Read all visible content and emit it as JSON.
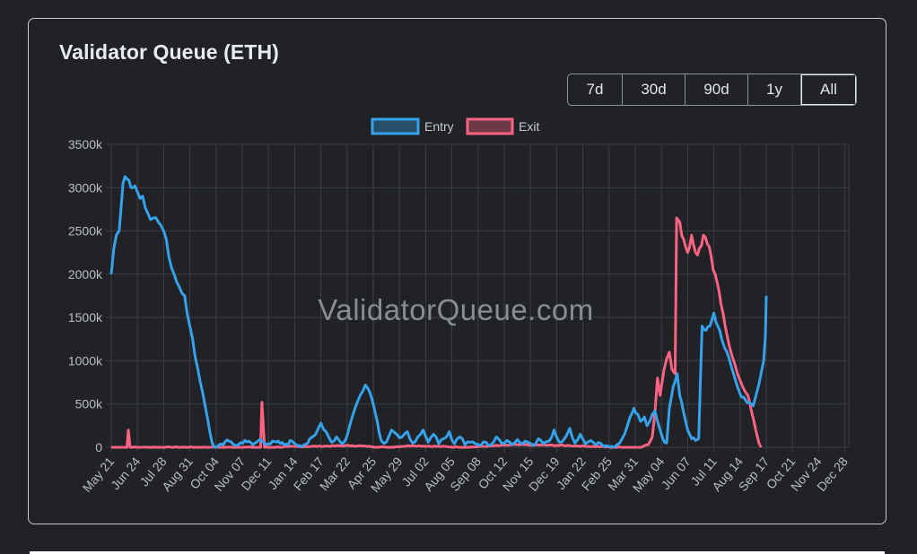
{
  "chart_data": {
    "type": "line",
    "title": "Validator Queue (ETH)",
    "watermark": "ValidatorQueue.com",
    "range_buttons": [
      "7d",
      "30d",
      "90d",
      "1y",
      "All"
    ],
    "active_range": "All",
    "ylim": [
      0,
      3500000
    ],
    "y_ticks": [
      0,
      500000,
      1000000,
      1500000,
      2000000,
      2500000,
      3000000,
      3500000
    ],
    "y_tick_labels": [
      "0",
      "500k",
      "1000k",
      "1500k",
      "2000k",
      "2500k",
      "3000k",
      "3500k"
    ],
    "x_tick_labels": [
      "May 21",
      "Jun 24",
      "Jul 28",
      "Aug 31",
      "Oct 04",
      "Nov 07",
      "Dec 11",
      "Jan 14",
      "Feb 17",
      "Mar 22",
      "Apr 25",
      "May 29",
      "Jul 02",
      "Aug 05",
      "Sep 08",
      "Oct 12",
      "Nov 15",
      "Dec 19",
      "Jan 22",
      "Feb 25",
      "Mar 31",
      "May 04",
      "Jun 07",
      "Jul 11",
      "Aug 14",
      "Sep 17",
      "Oct 21",
      "Nov 24",
      "Dec 28"
    ],
    "x_range_index": [
      0,
      28.25
    ],
    "legend": {
      "position": "top"
    },
    "series": [
      {
        "name": "Entry",
        "color": "#36a2eb",
        "points": [
          [
            0,
            2000000
          ],
          [
            0.1,
            2300000
          ],
          [
            0.3,
            2500000
          ],
          [
            0.45,
            3050000
          ],
          [
            0.6,
            3100000
          ],
          [
            0.75,
            3000000
          ],
          [
            0.9,
            3020000
          ],
          [
            1.0,
            2950000
          ],
          [
            1.2,
            2900000
          ],
          [
            1.4,
            2700000
          ],
          [
            1.6,
            2650000
          ],
          [
            1.8,
            2600000
          ],
          [
            2.0,
            2500000
          ],
          [
            2.2,
            2200000
          ],
          [
            2.4,
            2000000
          ],
          [
            2.6,
            1850000
          ],
          [
            2.8,
            1750000
          ],
          [
            3.0,
            1400000
          ],
          [
            3.2,
            1050000
          ],
          [
            3.4,
            750000
          ],
          [
            3.6,
            450000
          ],
          [
            3.75,
            200000
          ],
          [
            3.85,
            50000
          ],
          [
            3.95,
            0
          ],
          [
            4.2,
            40000
          ],
          [
            4.5,
            70000
          ],
          [
            4.8,
            20000
          ],
          [
            5.1,
            80000
          ],
          [
            5.4,
            30000
          ],
          [
            5.7,
            90000
          ],
          [
            6.0,
            40000
          ],
          [
            6.3,
            60000
          ],
          [
            6.6,
            30000
          ],
          [
            6.9,
            70000
          ],
          [
            7.2,
            20000
          ],
          [
            7.5,
            50000
          ],
          [
            7.8,
            150000
          ],
          [
            8.0,
            280000
          ],
          [
            8.2,
            180000
          ],
          [
            8.4,
            60000
          ],
          [
            8.6,
            120000
          ],
          [
            8.8,
            40000
          ],
          [
            8.95,
            90000
          ],
          [
            9.1,
            250000
          ],
          [
            9.3,
            450000
          ],
          [
            9.5,
            600000
          ],
          [
            9.7,
            720000
          ],
          [
            9.85,
            650000
          ],
          [
            10.0,
            500000
          ],
          [
            10.15,
            300000
          ],
          [
            10.3,
            80000
          ],
          [
            10.5,
            60000
          ],
          [
            10.7,
            200000
          ],
          [
            10.9,
            150000
          ],
          [
            11.1,
            120000
          ],
          [
            11.3,
            180000
          ],
          [
            11.5,
            50000
          ],
          [
            11.7,
            120000
          ],
          [
            11.9,
            200000
          ],
          [
            12.1,
            60000
          ],
          [
            12.3,
            150000
          ],
          [
            12.5,
            40000
          ],
          [
            12.7,
            100000
          ],
          [
            12.9,
            180000
          ],
          [
            13.1,
            40000
          ],
          [
            13.3,
            120000
          ],
          [
            13.5,
            30000
          ],
          [
            13.7,
            60000
          ],
          [
            13.9,
            40000
          ],
          [
            14.1,
            20000
          ],
          [
            14.3,
            60000
          ],
          [
            14.5,
            30000
          ],
          [
            14.7,
            120000
          ],
          [
            14.9,
            50000
          ],
          [
            15.1,
            80000
          ],
          [
            15.3,
            30000
          ],
          [
            15.5,
            90000
          ],
          [
            15.7,
            40000
          ],
          [
            15.9,
            60000
          ],
          [
            16.1,
            20000
          ],
          [
            16.3,
            100000
          ],
          [
            16.5,
            40000
          ],
          [
            16.7,
            70000
          ],
          [
            16.9,
            200000
          ],
          [
            17.1,
            60000
          ],
          [
            17.3,
            100000
          ],
          [
            17.5,
            220000
          ],
          [
            17.7,
            50000
          ],
          [
            17.9,
            150000
          ],
          [
            18.1,
            40000
          ],
          [
            18.3,
            80000
          ],
          [
            18.5,
            30000
          ],
          [
            18.7,
            40000
          ],
          [
            18.9,
            20000
          ],
          [
            19.1,
            10000
          ],
          [
            19.3,
            30000
          ],
          [
            19.5,
            100000
          ],
          [
            19.7,
            250000
          ],
          [
            19.8,
            350000
          ],
          [
            19.95,
            450000
          ],
          [
            20.1,
            380000
          ],
          [
            20.2,
            300000
          ],
          [
            20.35,
            350000
          ],
          [
            20.45,
            250000
          ],
          [
            20.55,
            300000
          ],
          [
            20.65,
            380000
          ],
          [
            20.75,
            420000
          ],
          [
            20.85,
            300000
          ],
          [
            20.95,
            200000
          ],
          [
            21.05,
            100000
          ],
          [
            21.2,
            50000
          ],
          [
            21.3,
            450000
          ],
          [
            21.45,
            700000
          ],
          [
            21.6,
            850000
          ],
          [
            21.7,
            600000
          ],
          [
            21.85,
            400000
          ],
          [
            22.0,
            200000
          ],
          [
            22.15,
            100000
          ],
          [
            22.3,
            80000
          ],
          [
            22.42,
            100000
          ],
          [
            22.55,
            1400000
          ],
          [
            22.7,
            1350000
          ],
          [
            22.85,
            1400000
          ],
          [
            23.0,
            1550000
          ],
          [
            23.15,
            1400000
          ],
          [
            23.3,
            1250000
          ],
          [
            23.5,
            1100000
          ],
          [
            23.7,
            900000
          ],
          [
            23.9,
            700000
          ],
          [
            24.05,
            580000
          ],
          [
            24.2,
            550000
          ],
          [
            24.35,
            520000
          ],
          [
            24.5,
            480000
          ],
          [
            24.65,
            650000
          ],
          [
            24.8,
            850000
          ],
          [
            24.9,
            1000000
          ],
          [
            24.97,
            1300000
          ],
          [
            25.0,
            1750000
          ]
        ]
      },
      {
        "name": "Exit",
        "color": "#ff6384",
        "points": [
          [
            0,
            0
          ],
          [
            0.6,
            0
          ],
          [
            0.65,
            200000
          ],
          [
            0.72,
            0
          ],
          [
            5.7,
            0
          ],
          [
            5.75,
            520000
          ],
          [
            5.85,
            0
          ],
          [
            9.2,
            20000
          ],
          [
            10.5,
            0
          ],
          [
            11.5,
            20000
          ],
          [
            13.5,
            0
          ],
          [
            15.5,
            30000
          ],
          [
            17.5,
            20000
          ],
          [
            19.3,
            0
          ],
          [
            20.2,
            0
          ],
          [
            20.35,
            20000
          ],
          [
            20.5,
            30000
          ],
          [
            20.65,
            120000
          ],
          [
            20.75,
            400000
          ],
          [
            20.85,
            800000
          ],
          [
            20.95,
            600000
          ],
          [
            21.1,
            900000
          ],
          [
            21.3,
            1100000
          ],
          [
            21.4,
            900000
          ],
          [
            21.52,
            850000
          ],
          [
            21.58,
            2650000
          ],
          [
            21.7,
            2600000
          ],
          [
            21.85,
            2400000
          ],
          [
            22.0,
            2250000
          ],
          [
            22.15,
            2450000
          ],
          [
            22.3,
            2250000
          ],
          [
            22.45,
            2300000
          ],
          [
            22.6,
            2450000
          ],
          [
            22.75,
            2350000
          ],
          [
            22.9,
            2200000
          ],
          [
            23.05,
            2000000
          ],
          [
            23.2,
            1800000
          ],
          [
            23.35,
            1550000
          ],
          [
            23.5,
            1300000
          ],
          [
            23.7,
            1050000
          ],
          [
            23.9,
            850000
          ],
          [
            24.1,
            700000
          ],
          [
            24.3,
            600000
          ],
          [
            24.45,
            400000
          ],
          [
            24.6,
            200000
          ],
          [
            24.72,
            50000
          ],
          [
            24.8,
            0
          ]
        ]
      }
    ]
  }
}
